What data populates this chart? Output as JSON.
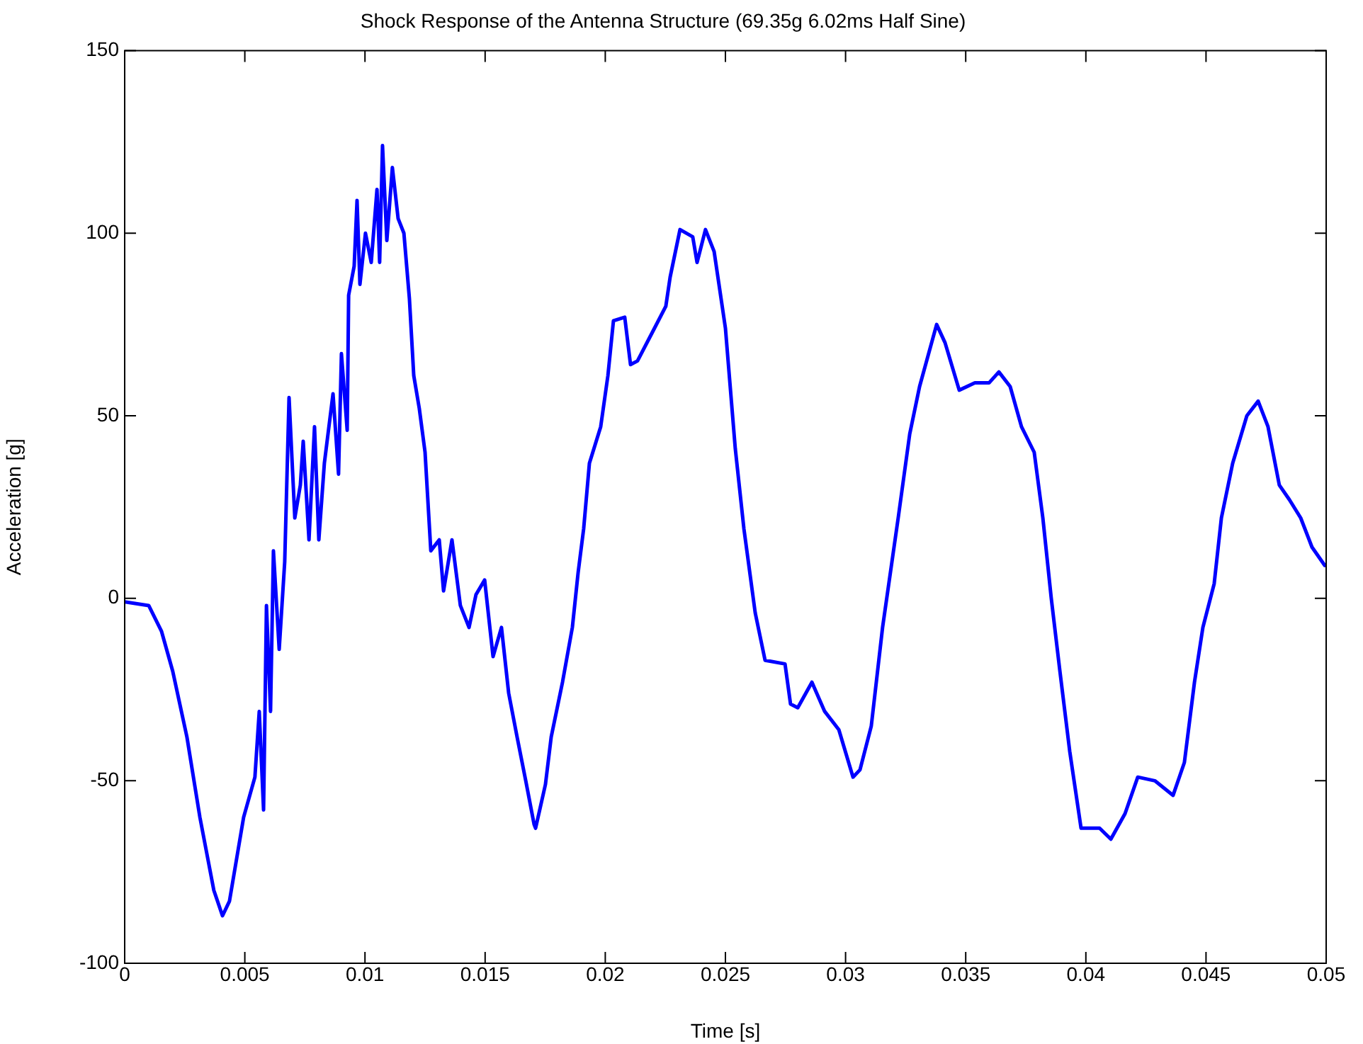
{
  "chart_data": {
    "type": "line",
    "title": "Shock Response of the Antenna Structure (69.35g 6.02ms Half Sine)",
    "xlabel": "Time [s]",
    "ylabel": "Acceleration [g]",
    "x": [
      0,
      0.001,
      0.00153,
      0.002,
      0.00259,
      0.00313,
      0.00371,
      0.00407,
      0.00436,
      0.00495,
      0.00542,
      0.0056,
      0.00578,
      0.0059,
      0.00607,
      0.00619,
      0.00643,
      0.00666,
      0.00684,
      0.00708,
      0.00731,
      0.00743,
      0.00767,
      0.0079,
      0.00808,
      0.00831,
      0.00867,
      0.0089,
      0.00902,
      0.00926,
      0.00932,
      0.00955,
      0.00967,
      0.00979,
      0.01002,
      0.01026,
      0.0105,
      0.01061,
      0.01073,
      0.01091,
      0.01114,
      0.01138,
      0.01162,
      0.01185,
      0.01203,
      0.01226,
      0.0125,
      0.01274,
      0.01309,
      0.01327,
      0.01362,
      0.01397,
      0.01433,
      0.01462,
      0.01498,
      0.01533,
      0.01568,
      0.01598,
      0.01633,
      0.01669,
      0.01704,
      0.0171,
      0.01751,
      0.01775,
      0.01822,
      0.01863,
      0.01887,
      0.0191,
      0.01934,
      0.01981,
      0.02011,
      0.02034,
      0.02081,
      0.02105,
      0.02134,
      0.02205,
      0.02252,
      0.0227,
      0.02311,
      0.02364,
      0.02382,
      0.02417,
      0.02453,
      0.025,
      0.02541,
      0.02577,
      0.02624,
      0.02665,
      0.02748,
      0.02771,
      0.02801,
      0.0286,
      0.02913,
      0.02972,
      0.03031,
      0.0306,
      0.03107,
      0.03154,
      0.03219,
      0.03267,
      0.03308,
      0.03379,
      0.03414,
      0.03473,
      0.03538,
      0.03597,
      0.03638,
      0.03685,
      0.03732,
      0.03785,
      0.03821,
      0.03856,
      0.03892,
      0.03933,
      0.0398,
      0.04057,
      0.04104,
      0.04163,
      0.04216,
      0.04287,
      0.04363,
      0.0441,
      0.04452,
      0.04487,
      0.04534,
      0.04564,
      0.04611,
      0.0467,
      0.04717,
      0.04758,
      0.04805,
      0.04847,
      0.04894,
      0.04941,
      0.04994
    ],
    "series": [
      {
        "color": "#0000ff",
        "values": [
          -1,
          -2,
          -9,
          -20,
          -38,
          -60,
          -80,
          -87,
          -83,
          -60,
          -49,
          -31,
          -58,
          -2,
          -31,
          13,
          -14,
          10,
          55,
          22,
          31,
          43,
          16,
          47,
          16,
          37,
          56,
          34,
          67,
          46,
          83,
          91,
          109,
          86,
          100,
          92,
          112,
          92,
          124,
          98,
          118,
          104,
          100,
          82,
          61,
          52,
          40,
          13,
          16,
          2,
          16,
          -2,
          -8,
          1,
          5,
          -16,
          -8,
          -26,
          -38,
          -50,
          -62,
          -63,
          -51,
          -38,
          -23,
          -8,
          7,
          19,
          37,
          47,
          61,
          76,
          77,
          64,
          65,
          74,
          80,
          88,
          101,
          99,
          92,
          101,
          95,
          74,
          41,
          19,
          -4,
          -17,
          -18,
          -29,
          -30,
          -23,
          -31,
          -36,
          -49,
          -47,
          -35,
          -8,
          22,
          45,
          58,
          75,
          70,
          57,
          59,
          59,
          62,
          58,
          47,
          40,
          22,
          0,
          -20,
          -42,
          -63,
          -63,
          -66,
          -59,
          -49,
          -50,
          -54,
          -45,
          -23,
          -8,
          4,
          22,
          37,
          50,
          54,
          47,
          31,
          27,
          22,
          14,
          9
        ]
      }
    ],
    "xlim": [
      0,
      0.05
    ],
    "xticks": [
      0,
      0.005,
      0.01,
      0.015,
      0.02,
      0.025,
      0.03,
      0.035,
      0.04,
      0.045,
      0.05
    ],
    "ylim": [
      -100,
      150
    ],
    "yticks": [
      -100,
      -50,
      0,
      50,
      100,
      150
    ],
    "grid": false,
    "legend": false,
    "marker": "none",
    "line_style": "solid"
  }
}
